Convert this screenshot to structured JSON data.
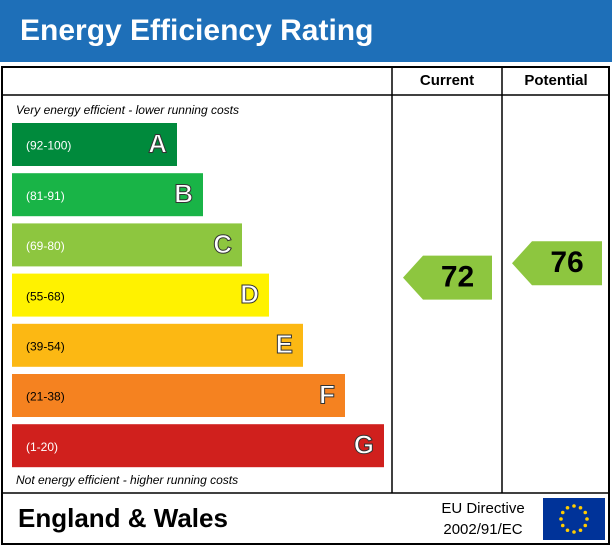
{
  "header": {
    "title": "Energy Efficiency Rating",
    "color": "#1e6fb8"
  },
  "columns": {
    "current": "Current",
    "potential": "Potential"
  },
  "notes": {
    "top": "Very energy efficient - lower running costs",
    "bottom": "Not energy efficient - higher running costs"
  },
  "bands": [
    {
      "range": "(92-100)",
      "letter": "A",
      "color": "#008a3c"
    },
    {
      "range": "(81-91)",
      "letter": "B",
      "color": "#19b447"
    },
    {
      "range": "(69-80)",
      "letter": "C",
      "color": "#8dc63f"
    },
    {
      "range": "(55-68)",
      "letter": "D",
      "color": "#fff200"
    },
    {
      "range": "(39-54)",
      "letter": "E",
      "color": "#fcb813"
    },
    {
      "range": "(21-38)",
      "letter": "F",
      "color": "#f58220"
    },
    {
      "range": "(1-20)",
      "letter": "G",
      "color": "#d0201d"
    }
  ],
  "ratings": {
    "current": {
      "value": 72,
      "color": "#8dc63f"
    },
    "potential": {
      "value": 76,
      "color": "#8dc63f"
    }
  },
  "footer": {
    "region": "England & Wales",
    "directive": [
      "EU Directive",
      "2002/91/EC"
    ]
  }
}
